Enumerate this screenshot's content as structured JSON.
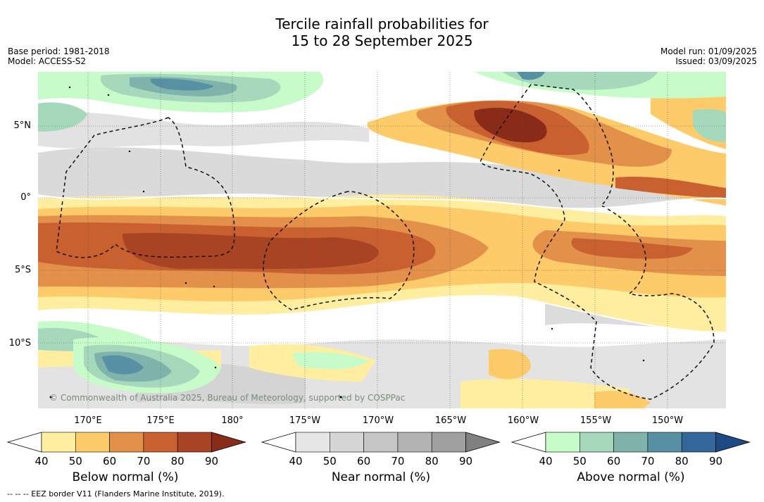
{
  "title": {
    "line1": "Tercile rainfall probabilities for",
    "line2": "15 to 28 September 2025"
  },
  "meta": {
    "base_period": "Base period: 1981-2018",
    "model": "Model: ACCESS-S2",
    "model_run": "Model run: 01/09/2025",
    "issued": "Issued: 03/09/2025"
  },
  "axes": {
    "lat_labels": [
      "5°N",
      "0°",
      "5°S",
      "10°S"
    ],
    "lon_labels": [
      "170°E",
      "175°E",
      "180°",
      "175°W",
      "170°W",
      "165°W",
      "160°W",
      "155°W",
      "150°W"
    ]
  },
  "copyright": "© Commonwealth of Australia 2025, Bureau of Meteorology, supported by COSPPac",
  "colorbars": [
    {
      "title": "Below normal (%)",
      "ticks": [
        "40",
        "50",
        "60",
        "70",
        "80",
        "90"
      ],
      "colors": [
        "#ffeda0",
        "#fdcb6a",
        "#e3914a",
        "#c8602f",
        "#a84424",
        "#8a2b1a"
      ]
    },
    {
      "title": "Near normal (%)",
      "ticks": [
        "40",
        "50",
        "60",
        "70",
        "80",
        "90"
      ],
      "colors": [
        "#e6e6e6",
        "#d6d6d6",
        "#c6c6c6",
        "#b3b3b3",
        "#a0a0a0",
        "#808080"
      ]
    },
    {
      "title": "Above normal (%)",
      "ticks": [
        "40",
        "50",
        "60",
        "70",
        "80",
        "90"
      ],
      "colors": [
        "#c7fbc9",
        "#a6d8bc",
        "#7fb3ac",
        "#5890a4",
        "#336699",
        "#1c4a85"
      ]
    }
  ],
  "footnote": "--  --  -- EEZ border V11 (Flanders Marine Institute, 2019).",
  "palette": {
    "below": [
      "#ffeda0",
      "#fdcb6a",
      "#e3914a",
      "#c8602f",
      "#a84424",
      "#8a2b1a"
    ],
    "near": [
      "#e6e6e6",
      "#d6d6d6",
      "#c6c6c6"
    ],
    "above": [
      "#c7fbc9",
      "#a6d8bc",
      "#7fb3ac",
      "#5890a4",
      "#336699"
    ]
  }
}
